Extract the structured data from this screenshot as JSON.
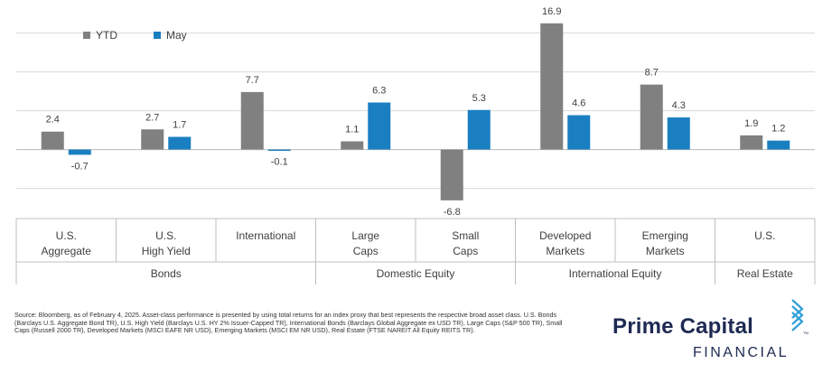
{
  "chart_data": {
    "type": "bar",
    "title": "",
    "series": [
      {
        "name": "YTD",
        "color": "#808080",
        "values": [
          2.4,
          2.7,
          7.7,
          1.1,
          -6.8,
          16.9,
          8.7,
          1.9
        ]
      },
      {
        "name": "May",
        "color": "#1a7fc1",
        "values": [
          -0.7,
          1.7,
          -0.1,
          6.3,
          5.3,
          4.6,
          4.3,
          1.2
        ]
      }
    ],
    "value_labels": {
      "YTD": [
        "2.4",
        "2.7",
        "7.7",
        "1.1",
        "-6.8",
        "16.9",
        "8.7",
        "1.9"
      ],
      "May": [
        "-0.7",
        "1.7",
        "-0.1",
        "6.3",
        "5.3",
        "4.6",
        "4.3",
        "1.2"
      ]
    },
    "categories": [
      [
        "U.S.",
        "Aggregate"
      ],
      [
        "U.S.",
        "High Yield"
      ],
      [
        "International"
      ],
      [
        "Large",
        "Caps"
      ],
      [
        "Small",
        "Caps"
      ],
      [
        "Developed",
        "Markets"
      ],
      [
        "Emerging",
        "Markets"
      ],
      [
        "U.S."
      ]
    ],
    "groups": [
      {
        "label": "Bonds",
        "start": 0,
        "end": 2
      },
      {
        "label": "Domestic Equity",
        "start": 3,
        "end": 4
      },
      {
        "label": "International Equity",
        "start": 5,
        "end": 6
      },
      {
        "label": "Real Estate",
        "start": 7,
        "end": 7
      }
    ],
    "ylim": [
      -9,
      19.3
    ],
    "gridlines": [
      -5.2,
      0,
      5.2,
      10.4,
      15.6
    ],
    "legend": "top-left",
    "xlabel": "",
    "ylabel": ""
  },
  "footer": {
    "source": "Source: Bloomberg, as of February 4, 2025. Asset-class performance is presented by using total returns for an index proxy that best represents the respective broad asset class. U.S. Bonds (Barclays U.S. Aggregate Bond TR), U.S. High Yield (Barclays U.S. HY 2% Issuer-Capped TR), International Bonds (Barclays Global Aggregate ex USD TR), Large Caps (S&P 500 TR), Small Caps (Russell 2000 TR), Developed Markets (MSCI EAFE NR USD), Emerging Markets (MSCI EM NR USD), Real Estate (FTSE NAREIT All Equity REITS TR)."
  },
  "logo": {
    "name": "Prime Capital",
    "subtitle": "FINANCIAL",
    "trademark": "TM",
    "color": "#1e2a52",
    "mark_color": "#2f9fd8"
  }
}
